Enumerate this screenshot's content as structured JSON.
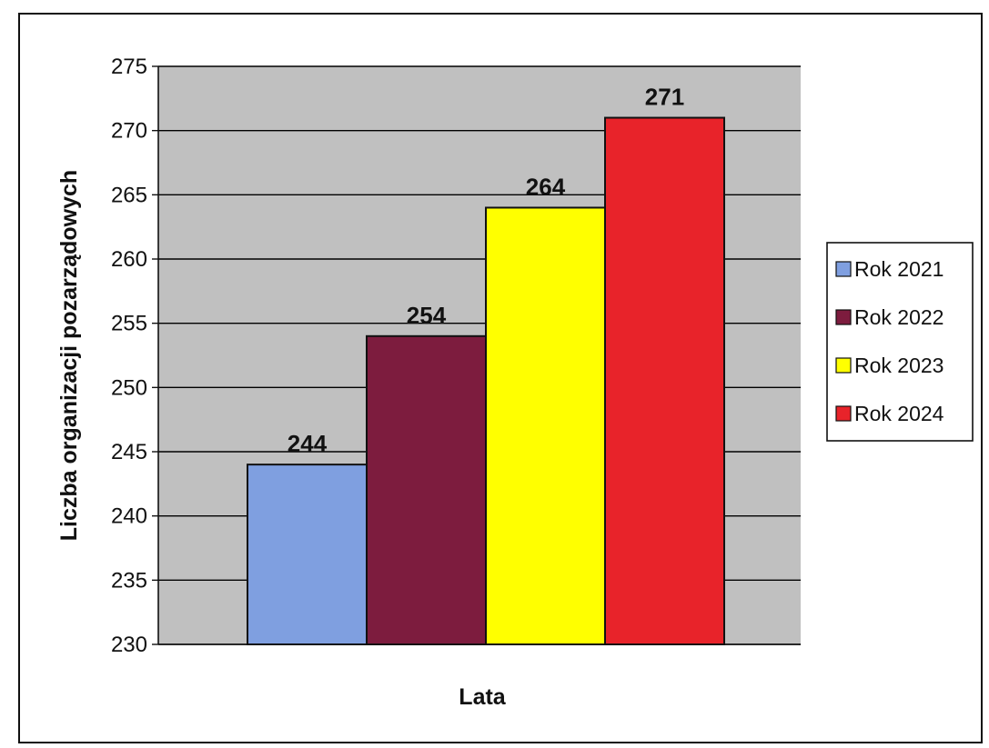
{
  "chart_data": {
    "type": "bar",
    "xlabel": "Lata",
    "ylabel": "Liczba organizacji pozarządowych",
    "ylim": [
      230,
      275
    ],
    "ytick_step": 5,
    "grid": true,
    "legend_position": "right",
    "series": [
      {
        "name": "Rok 2021",
        "value": 244,
        "color": "#7f9fe0"
      },
      {
        "name": "Rok 2022",
        "value": 254,
        "color": "#7d1c3e"
      },
      {
        "name": "Rok 2023",
        "value": 264,
        "color": "#ffff00"
      },
      {
        "name": "Rok 2024",
        "value": 271,
        "color": "#e8232a"
      }
    ]
  },
  "colors": {
    "plot_background": "#c0c0c0",
    "gridline": "#000000",
    "frame": "#111111"
  }
}
